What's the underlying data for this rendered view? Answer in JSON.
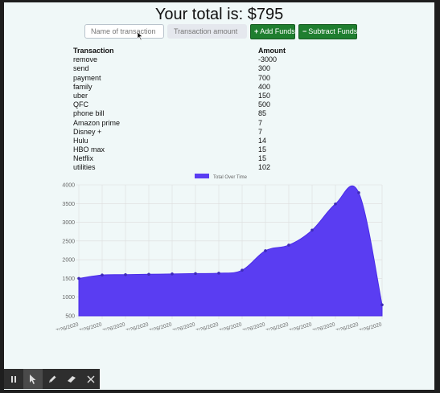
{
  "header": {
    "total_text": "Your total is: $795"
  },
  "form": {
    "name_placeholder": "Name of transaction",
    "amount_placeholder": "Transaction amount",
    "add_label": "Add Funds",
    "subtract_label": "Subtract Funds"
  },
  "table": {
    "headers": [
      "Transaction",
      "Amount"
    ],
    "rows": [
      [
        "remove",
        "-3000"
      ],
      [
        "send",
        "300"
      ],
      [
        "payment",
        "700"
      ],
      [
        "family",
        "400"
      ],
      [
        "uber",
        "150"
      ],
      [
        "QFC",
        "500"
      ],
      [
        "phone bill",
        "85"
      ],
      [
        "Amazon prime",
        "7"
      ],
      [
        "Disney +",
        "7"
      ],
      [
        "Hulu",
        "14"
      ],
      [
        "HBO max",
        "15"
      ],
      [
        "Netflix",
        "15"
      ],
      [
        "utilities",
        "102"
      ]
    ]
  },
  "chart_data": {
    "type": "area",
    "series": [
      {
        "name": "Total Over Time",
        "values": [
          1500,
          1590,
          1600,
          1610,
          1620,
          1630,
          1640,
          1720,
          2240,
          2390,
          2790,
          3490,
          3790,
          795
        ]
      }
    ],
    "categories": [
      "7/26/2020",
      "7/26/2020",
      "7/26/2020",
      "7/26/2020",
      "7/26/2020",
      "7/26/2020",
      "7/26/2020",
      "7/26/2020",
      "7/26/2020",
      "7/26/2020",
      "7/26/2020",
      "7/26/2020",
      "7/26/2020",
      "7/26/2020"
    ],
    "x_tick_labels": [
      "7/26/2020",
      "7/26/2020",
      "7/26/2020",
      "7/26/2020",
      "7/26/2020",
      "7/26/2020",
      "7/26/2020",
      "7/26/2020",
      "7/26/2020",
      "7/26/2020",
      "7/26/2020",
      "7/26/2020",
      "7/26/2020",
      "7/26/2020"
    ],
    "y_ticks": [
      500,
      1000,
      1500,
      2000,
      2500,
      3000,
      3500,
      4000
    ],
    "ylim": [
      500,
      4000
    ],
    "legend_position": "top",
    "grid": true,
    "fill_color": "#5a3df2",
    "line_color": "#4a2ce8",
    "point_color": "#3e2bb8"
  },
  "toolbar": {
    "items": [
      "pause-icon",
      "pointer-icon",
      "pen-icon",
      "eraser-icon",
      "close-icon"
    ],
    "background_color": "#2e2e2e",
    "active_item": "pointer-icon"
  }
}
